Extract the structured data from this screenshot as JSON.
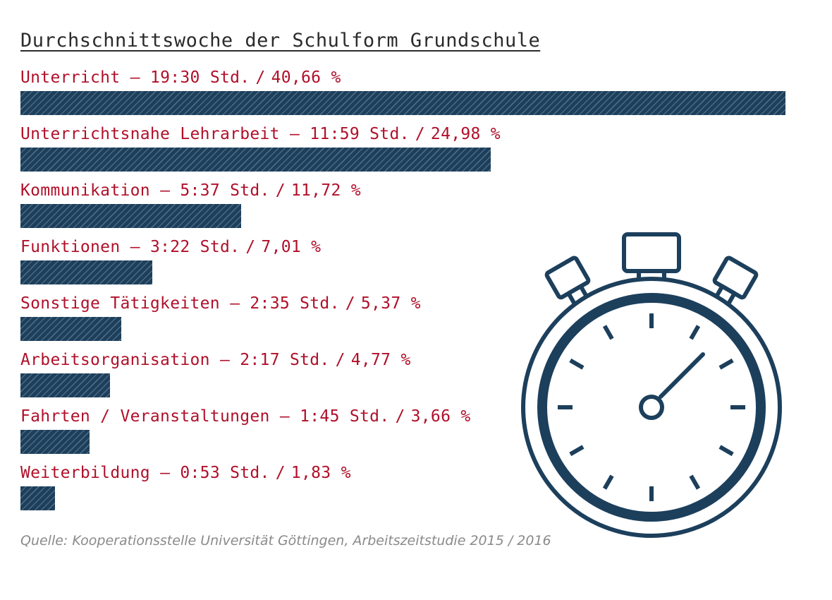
{
  "title": "Durchschnittswoche der Schulform Grundschule",
  "source": "Quelle: Kooperationsstelle Universität Göttingen, Arbeitszeitstudie 2015 / 2016",
  "colors": {
    "label": "#b0102a",
    "bar": "#1c3f5c",
    "title": "#2b2b2b",
    "source": "#8a8a8a",
    "icon": "#1c3f5c"
  },
  "icon": "stopwatch-icon",
  "chart_data": {
    "type": "bar",
    "orientation": "horizontal",
    "title": "Durchschnittswoche der Schulform Grundschule",
    "categories": [
      "Unterricht",
      "Unterrichtsnahe Lehrarbeit",
      "Kommunikation",
      "Funktionen",
      "Sonstige Tätigkeiten",
      "Arbeitsorganisation",
      "Fahrten / Veranstaltungen",
      "Weiterbildung"
    ],
    "hours": [
      "19:30",
      "11:59",
      "5:37",
      "3:22",
      "2:35",
      "2:17",
      "1:45",
      "0:53"
    ],
    "unit": "Std.",
    "values": [
      40.66,
      24.98,
      11.72,
      7.01,
      5.37,
      4.77,
      3.66,
      1.83
    ],
    "percent_labels": [
      "40,66 %",
      "24,98 %",
      "11,72 %",
      "7,01 %",
      "5,37 %",
      "4,77 %",
      "3,66 %",
      "1,83 %"
    ],
    "xlim": [
      0,
      40.66
    ],
    "grid": false,
    "legend": "none"
  }
}
